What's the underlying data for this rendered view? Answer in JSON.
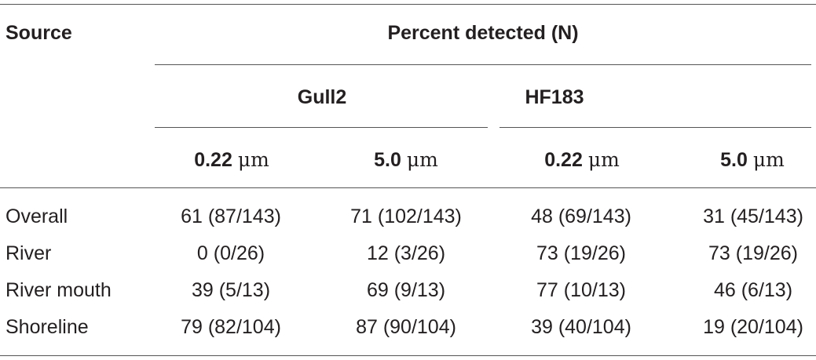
{
  "table": {
    "header": {
      "source": "Source",
      "percent_detected": "Percent detected (N)",
      "groups": [
        "Gull2",
        "HF183"
      ],
      "sizes": [
        {
          "value": "0.22",
          "unit": "μm"
        },
        {
          "value": "5.0",
          "unit": "μm"
        },
        {
          "value": "0.22",
          "unit": "μm"
        },
        {
          "value": "5.0",
          "unit": "μm"
        }
      ]
    },
    "rows": [
      {
        "label": "Overall",
        "cells": [
          "61 (87/143)",
          "71 (102/143)",
          "48 (69/143)",
          "31 (45/143)"
        ]
      },
      {
        "label": "River",
        "cells": [
          "0 (0/26)",
          "12 (3/26)",
          "73 (19/26)",
          "73 (19/26)"
        ]
      },
      {
        "label": "River mouth",
        "cells": [
          "39 (5/13)",
          "69 (9/13)",
          "77 (10/13)",
          "46 (6/13)"
        ]
      },
      {
        "label": "Shoreline",
        "cells": [
          "79 (82/104)",
          "87 (90/104)",
          "39 (40/104)",
          "19 (20/104)"
        ]
      }
    ]
  }
}
